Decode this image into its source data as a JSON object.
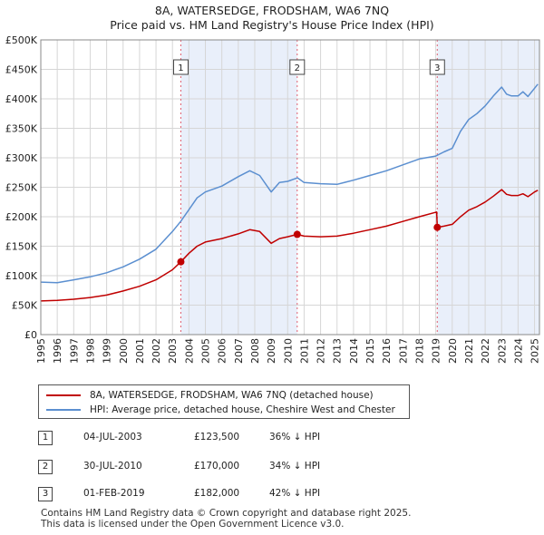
{
  "header": {
    "title": "8A, WATERSEDGE, FRODSHAM, WA6 7NQ",
    "subtitle": "Price paid vs. HM Land Registry's House Price Index (HPI)"
  },
  "legend": {
    "property_label": "8A, WATERSEDGE, FRODSHAM, WA6 7NQ (detached house)",
    "hpi_label": "HPI: Average price, detached house, Cheshire West and Chester"
  },
  "sales": [
    {
      "num": "1",
      "date": "04-JUL-2003",
      "price": "£123,500",
      "hpi": "36% ↓ HPI"
    },
    {
      "num": "2",
      "date": "30-JUL-2010",
      "price": "£170,000",
      "hpi": "34% ↓ HPI"
    },
    {
      "num": "3",
      "date": "01-FEB-2019",
      "price": "£182,000",
      "hpi": "42% ↓ HPI"
    }
  ],
  "footer": {
    "line1": "Contains HM Land Registry data © Crown copyright and database right 2025.",
    "line2": "This data is licensed under the Open Government Licence v3.0."
  },
  "colors": {
    "property": "#c00000",
    "hpi": "#5b8fd0",
    "shade": "#e9effa",
    "marker_line": "#e06070"
  },
  "chart_data": {
    "type": "line",
    "title": "8A, WATERSEDGE, FRODSHAM, WA6 7NQ",
    "subtitle": "Price paid vs. HM Land Registry's House Price Index (HPI)",
    "xlabel": "",
    "ylabel": "",
    "xlim": [
      1995,
      2025.3
    ],
    "ylim": [
      0,
      500000
    ],
    "y_ticks": [
      0,
      50000,
      100000,
      150000,
      200000,
      250000,
      300000,
      350000,
      400000,
      450000,
      500000
    ],
    "y_tick_labels": [
      "£0",
      "£50K",
      "£100K",
      "£150K",
      "£200K",
      "£250K",
      "£300K",
      "£350K",
      "£400K",
      "£450K",
      "£500K"
    ],
    "x_ticks": [
      1995,
      1996,
      1997,
      1998,
      1999,
      2000,
      2001,
      2002,
      2003,
      2004,
      2005,
      2006,
      2007,
      2008,
      2009,
      2010,
      2011,
      2012,
      2013,
      2014,
      2015,
      2016,
      2017,
      2018,
      2019,
      2020,
      2021,
      2022,
      2023,
      2024,
      2025
    ],
    "x_tick_labels": [
      "1995",
      "1996",
      "1997",
      "1998",
      "1999",
      "2000",
      "2001",
      "2002",
      "2003",
      "2004",
      "2005",
      "2006",
      "2007",
      "2008",
      "2009",
      "2010",
      "2011",
      "2012",
      "2013",
      "2014",
      "2015",
      "2016",
      "2017",
      "2018",
      "2019",
      "2020",
      "2021",
      "2022",
      "2023",
      "2024",
      "2025"
    ],
    "grid": true,
    "shaded_ranges": [
      [
        2003.51,
        2010.58
      ],
      [
        2019.09,
        2025.3
      ]
    ],
    "series": [
      {
        "name": "HPI: Average price, detached house, Cheshire West and Chester",
        "color": "#5b8fd0",
        "x": [
          1995,
          1996,
          1997,
          1998,
          1999,
          2000,
          2001,
          2002,
          2003,
          2003.5,
          2004,
          2004.5,
          2005,
          2006,
          2007,
          2007.7,
          2008.3,
          2009,
          2009.5,
          2010,
          2010.6,
          2011,
          2012,
          2013,
          2014,
          2015,
          2016,
          2017,
          2018,
          2019,
          2019.5,
          2020,
          2020.5,
          2021,
          2021.5,
          2022,
          2022.5,
          2023,
          2023.3,
          2023.6,
          2024,
          2024.3,
          2024.6,
          2025,
          2025.2
        ],
        "values": [
          89000,
          88000,
          93000,
          98000,
          105000,
          115000,
          128000,
          145000,
          175000,
          192000,
          212000,
          232000,
          242000,
          252000,
          268000,
          278000,
          270000,
          242000,
          258000,
          260000,
          266000,
          258000,
          256000,
          255000,
          262000,
          270000,
          278000,
          288000,
          298000,
          303000,
          310000,
          316000,
          345000,
          365000,
          375000,
          388000,
          405000,
          420000,
          408000,
          405000,
          405000,
          412000,
          404000,
          418000,
          425000
        ]
      },
      {
        "name": "8A, WATERSEDGE, FRODSHAM, WA6 7NQ (detached house)",
        "color": "#c00000",
        "x": [
          1995,
          1996,
          1997,
          1998,
          1999,
          2000,
          2001,
          2002,
          2003,
          2003.51,
          2004,
          2004.5,
          2005,
          2006,
          2007,
          2007.7,
          2008.3,
          2009,
          2009.5,
          2010,
          2010.58,
          2011,
          2012,
          2013,
          2014,
          2015,
          2016,
          2017,
          2018,
          2019.05,
          2019.09,
          2019.5,
          2020,
          2020.5,
          2021,
          2021.5,
          2022,
          2022.5,
          2023,
          2023.3,
          2023.6,
          2024,
          2024.3,
          2024.6,
          2025,
          2025.2
        ],
        "values": [
          57000,
          58000,
          60000,
          63000,
          67000,
          74000,
          82000,
          93000,
          110000,
          123500,
          138000,
          150000,
          157000,
          163000,
          171000,
          178000,
          175000,
          155000,
          163000,
          166000,
          170000,
          167000,
          166000,
          167000,
          172000,
          178000,
          184000,
          192000,
          200000,
          208000,
          182000,
          184000,
          187000,
          200000,
          211000,
          217000,
          225000,
          235000,
          246000,
          238000,
          236000,
          236000,
          239000,
          234000,
          242000,
          245000
        ]
      }
    ],
    "sale_points": [
      {
        "label": "1",
        "x": 2003.51,
        "y": 123500
      },
      {
        "label": "2",
        "x": 2010.58,
        "y": 170000
      },
      {
        "label": "3",
        "x": 2019.09,
        "y": 182000
      }
    ]
  }
}
